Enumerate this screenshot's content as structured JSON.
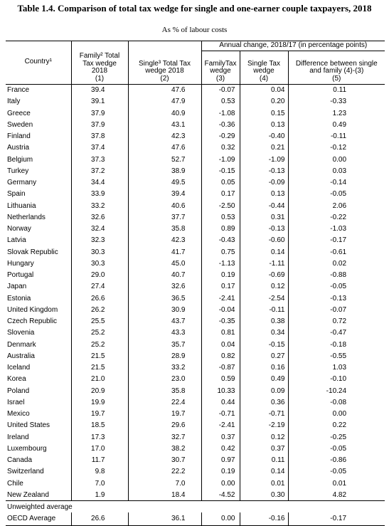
{
  "title": "Table 1.4. Comparison of total tax wedge for single and one-earner couple taxpayers, 2018",
  "subtitle": "As % of labour costs",
  "table": {
    "group_header": "Annual change, 2018/17 (in percentage points)",
    "columns": [
      [
        "Country¹"
      ],
      [
        "Family² Total",
        "Tax wedge",
        "2018",
        "(1)"
      ],
      [
        "Single³ Total Tax",
        "wedge 2018",
        "(2)"
      ],
      [
        "FamilyTax",
        "wedge",
        "(3)"
      ],
      [
        "Single Tax",
        "wedge",
        "(4)"
      ],
      [
        "Difference between single",
        "and family (4)-(3)",
        "(5)"
      ]
    ],
    "rows": [
      [
        "France",
        "39.4",
        "47.6",
        "-0.07",
        "0.04",
        "0.11"
      ],
      [
        "Italy",
        "39.1",
        "47.9",
        "0.53",
        "0.20",
        "-0.33"
      ],
      [
        "Greece",
        "37.9",
        "40.9",
        "-1.08",
        "0.15",
        "1.23"
      ],
      [
        "Sweden",
        "37.9",
        "43.1",
        "-0.36",
        "0.13",
        "0.49"
      ],
      [
        "Finland",
        "37.8",
        "42.3",
        "-0.29",
        "-0.40",
        "-0.11"
      ],
      [
        "Austria",
        "37.4",
        "47.6",
        "0.32",
        "0.21",
        "-0.12"
      ],
      [
        "Belgium",
        "37.3",
        "52.7",
        "-1.09",
        "-1.09",
        "0.00"
      ],
      [
        "Turkey",
        "37.2",
        "38.9",
        "-0.15",
        "-0.13",
        "0.03"
      ],
      [
        "Germany",
        "34.4",
        "49.5",
        "0.05",
        "-0.09",
        "-0.14"
      ],
      [
        "Spain",
        "33.9",
        "39.4",
        "0.17",
        "0.13",
        "-0.05"
      ],
      [
        "Lithuania",
        "33.2",
        "40.6",
        "-2.50",
        "-0.44",
        "2.06"
      ],
      [
        "Netherlands",
        "32.6",
        "37.7",
        "0.53",
        "0.31",
        "-0.22"
      ],
      [
        "Norway",
        "32.4",
        "35.8",
        "0.89",
        "-0.13",
        "-1.03"
      ],
      [
        "Latvia",
        "32.3",
        "42.3",
        "-0.43",
        "-0.60",
        "-0.17"
      ],
      [
        "Slovak Republic",
        "30.3",
        "41.7",
        "0.75",
        "0.14",
        "-0.61"
      ],
      [
        "Hungary",
        "30.3",
        "45.0",
        "-1.13",
        "-1.11",
        "0.02"
      ],
      [
        "Portugal",
        "29.0",
        "40.7",
        "0.19",
        "-0.69",
        "-0.88"
      ],
      [
        "Japan",
        "27.4",
        "32.6",
        "0.17",
        "0.12",
        "-0.05"
      ],
      [
        "Estonia",
        "26.6",
        "36.5",
        "-2.41",
        "-2.54",
        "-0.13"
      ],
      [
        "United Kingdom",
        "26.2",
        "30.9",
        "-0.04",
        "-0.11",
        "-0.07"
      ],
      [
        "Czech Republic",
        "25.5",
        "43.7",
        "-0.35",
        "0.38",
        "0.72"
      ],
      [
        "Slovenia",
        "25.2",
        "43.3",
        "0.81",
        "0.34",
        "-0.47"
      ],
      [
        "Denmark",
        "25.2",
        "35.7",
        "0.04",
        "-0.15",
        "-0.18"
      ],
      [
        "Australia",
        "21.5",
        "28.9",
        "0.82",
        "0.27",
        "-0.55"
      ],
      [
        "Iceland",
        "21.5",
        "33.2",
        "-0.87",
        "0.16",
        "1.03"
      ],
      [
        "Korea",
        "21.0",
        "23.0",
        "0.59",
        "0.49",
        "-0.10"
      ],
      [
        "Poland",
        "20.9",
        "35.8",
        "10.33",
        "0.09",
        "-10.24"
      ],
      [
        "Israel",
        "19.9",
        "22.4",
        "0.44",
        "0.36",
        "-0.08"
      ],
      [
        "Mexico",
        "19.7",
        "19.7",
        "-0.71",
        "-0.71",
        "0.00"
      ],
      [
        "United States",
        "18.5",
        "29.6",
        "-2.41",
        "-2.19",
        "0.22"
      ],
      [
        "Ireland",
        "17.3",
        "32.7",
        "0.37",
        "0.12",
        "-0.25"
      ],
      [
        "Luxembourg",
        "17.0",
        "38.2",
        "0.42",
        "0.37",
        "-0.05"
      ],
      [
        "Canada",
        "11.7",
        "30.7",
        "0.97",
        "0.11",
        "-0.86"
      ],
      [
        "Switzerland",
        "9.8",
        "22.2",
        "0.19",
        "0.14",
        "-0.05"
      ],
      [
        "Chile",
        "7.0",
        "7.0",
        "0.00",
        "0.01",
        "0.01"
      ],
      [
        "New Zealand",
        "1.9",
        "18.4",
        "-4.52",
        "0.30",
        "4.82"
      ]
    ],
    "footer_label": "Unweighted average",
    "footer_row": [
      "OECD Average",
      "26.6",
      "36.1",
      "0.00",
      "-0.16",
      "-0.17"
    ]
  }
}
